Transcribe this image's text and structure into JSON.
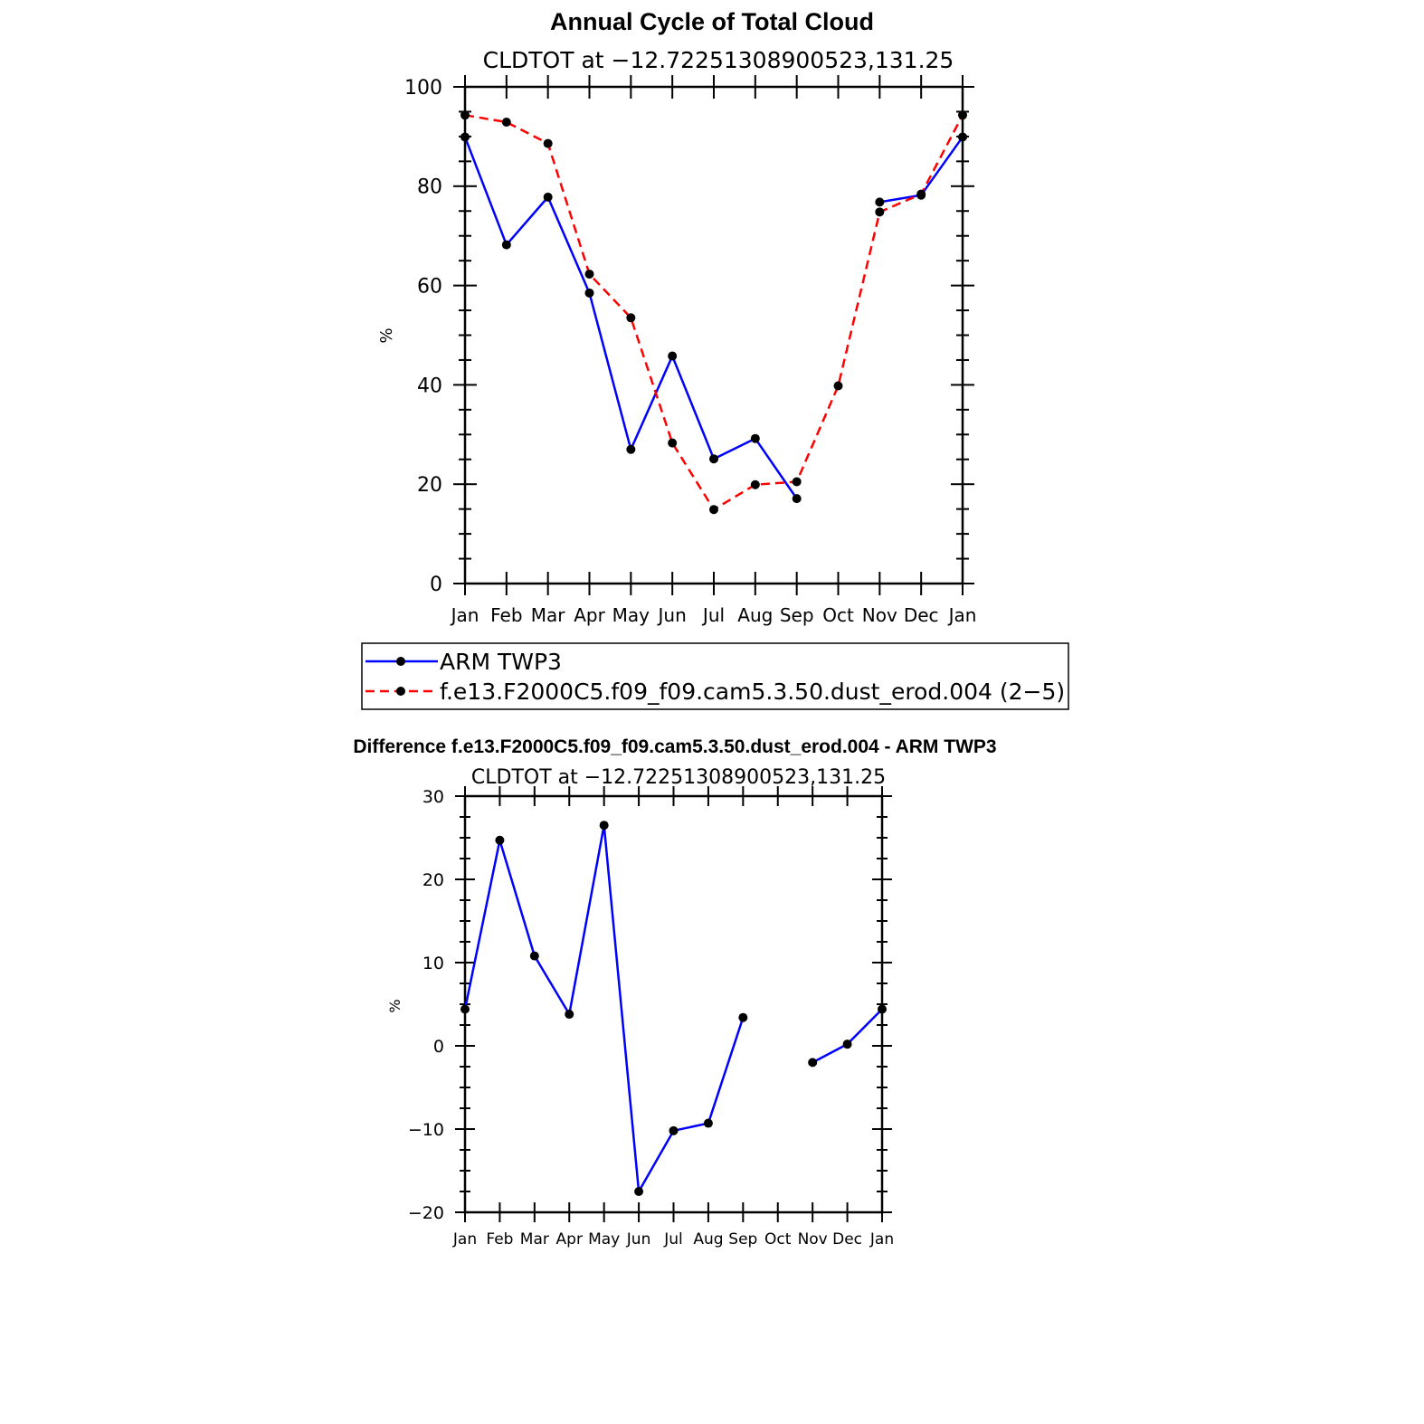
{
  "chart_data": [
    {
      "type": "line",
      "title": "Annual Cycle of Total Cloud",
      "subtitle": "CLDTOT at −12.72251308900523,131.25",
      "ylabel": "%",
      "xlabel": "",
      "ylim": [
        0,
        100
      ],
      "yticks": [
        0,
        20,
        40,
        60,
        80,
        100
      ],
      "categories": [
        "Jan",
        "Feb",
        "Mar",
        "Apr",
        "May",
        "Jun",
        "Jul",
        "Aug",
        "Sep",
        "Oct",
        "Nov",
        "Dec",
        "Jan"
      ],
      "series": [
        {
          "name": "ARM TWP3",
          "color": "#0000ff",
          "dash": "solid",
          "values": [
            89.9,
            68.2,
            77.8,
            58.5,
            27.0,
            45.8,
            25.1,
            29.2,
            17.1,
            null,
            76.8,
            78.2,
            89.9
          ]
        },
        {
          "name": "f.e13.F2000C5.f09_f09.cam5.3.50.dust_erod.004 (2−5)",
          "color": "#ff0000",
          "dash": "dashed",
          "values": [
            94.3,
            92.9,
            88.6,
            62.3,
            53.5,
            28.3,
            14.9,
            19.9,
            20.5,
            39.8,
            74.8,
            78.4,
            94.3
          ]
        }
      ],
      "legend": "below"
    },
    {
      "type": "line",
      "title": "Difference f.e13.F2000C5.f09_f09.cam5.3.50.dust_erod.004 - ARM TWP3",
      "subtitle": "CLDTOT at −12.72251308900523,131.25",
      "ylabel": "%",
      "xlabel": "",
      "ylim": [
        -20,
        30
      ],
      "yticks": [
        -20,
        -10,
        0,
        10,
        20,
        30
      ],
      "ytick_labels": [
        "−20",
        "−10",
        "0",
        "10",
        "20",
        "30"
      ],
      "categories": [
        "Jan",
        "Feb",
        "Mar",
        "Apr",
        "May",
        "Jun",
        "Jul",
        "Aug",
        "Sep",
        "Oct",
        "Nov",
        "Dec",
        "Jan"
      ],
      "series": [
        {
          "color": "#0000ff",
          "dash": "solid",
          "values": [
            4.4,
            24.7,
            10.8,
            3.8,
            26.5,
            -17.5,
            -10.2,
            -9.3,
            3.4,
            null,
            -2.0,
            0.2,
            4.4
          ]
        }
      ]
    }
  ]
}
